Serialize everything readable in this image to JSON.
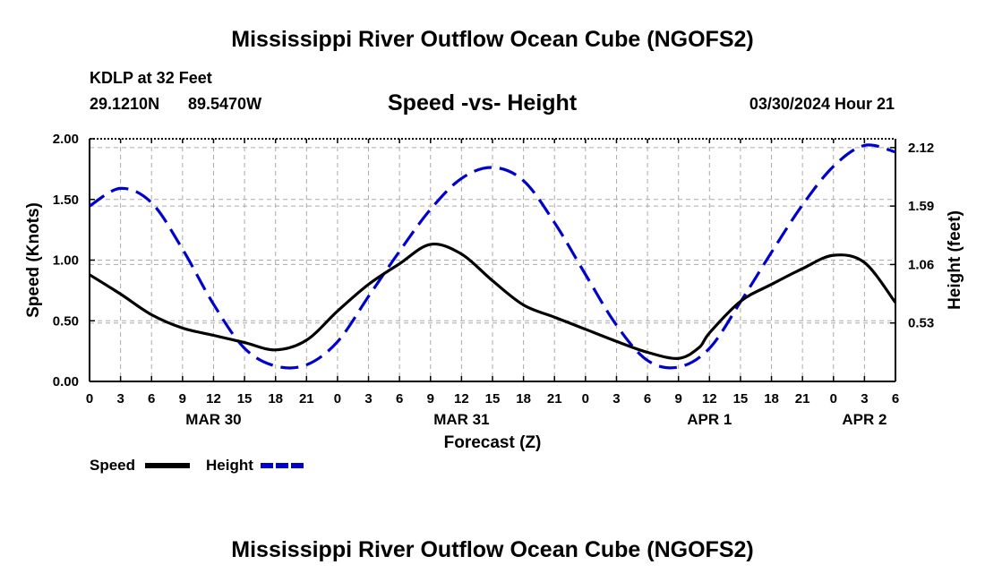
{
  "page": {
    "title": "Mississippi River Outflow Ocean Cube (NGOFS2)",
    "bottom_title": "Mississippi River Outflow Ocean Cube (NGOFS2)",
    "station": "KDLP at 32 Feet",
    "lat": "29.1210N",
    "lon": "89.5470W",
    "subtitle": "Speed -vs- Height",
    "datetime": "03/30/2024 Hour 21"
  },
  "chart_data": {
    "type": "line",
    "title": "Speed -vs- Height",
    "xlabel": "Forecast (Z)",
    "ylabel": "Speed (Knots)",
    "y2label": "Height (feet)",
    "xlim": [
      0,
      78
    ],
    "ylim": [
      0,
      2.0
    ],
    "y2lim": [
      0,
      2.2
    ],
    "grid": true,
    "x_ticks": [
      0,
      3,
      6,
      9,
      12,
      15,
      18,
      21,
      24,
      27,
      30,
      33,
      36,
      39,
      42,
      45,
      48,
      51,
      54,
      57,
      60,
      63,
      66,
      69,
      72,
      75,
      78
    ],
    "x_tick_labels": [
      "0",
      "3",
      "6",
      "9",
      "12",
      "15",
      "18",
      "21",
      "0",
      "3",
      "6",
      "9",
      "12",
      "15",
      "18",
      "21",
      "0",
      "3",
      "6",
      "9",
      "12",
      "15",
      "18",
      "21",
      "0",
      "3",
      "6"
    ],
    "date_labels": [
      {
        "label": "MAR 30",
        "x": 12
      },
      {
        "label": "MAR 31",
        "x": 36
      },
      {
        "label": "APR 1",
        "x": 60
      },
      {
        "label": "APR 2",
        "x": 75
      }
    ],
    "y_ticks": [
      0,
      0.5,
      1.0,
      1.5,
      2.0
    ],
    "y_tick_labels": [
      "0.00",
      "0.50",
      "1.00",
      "1.50",
      "2.00"
    ],
    "y2_ticks": [
      0.53,
      1.06,
      1.59,
      2.12
    ],
    "y2_tick_labels": [
      "0.53",
      "1.06",
      "1.59",
      "2.12"
    ],
    "legend": [
      {
        "name": "Speed",
        "color": "#000000",
        "style": "solid"
      },
      {
        "name": "Height",
        "color": "#0000cc",
        "style": "dashed"
      }
    ],
    "series": [
      {
        "name": "Speed",
        "axis": "left",
        "color": "#000000",
        "style": "solid",
        "x": [
          0,
          3,
          6,
          9,
          12,
          15,
          18,
          21,
          24,
          27,
          30,
          33,
          36,
          39,
          42,
          45,
          48,
          51,
          54,
          57,
          59,
          60,
          63,
          66,
          69,
          72,
          75,
          78
        ],
        "values": [
          0.88,
          0.72,
          0.55,
          0.44,
          0.38,
          0.32,
          0.26,
          0.34,
          0.58,
          0.8,
          0.97,
          1.13,
          1.05,
          0.83,
          0.63,
          0.53,
          0.43,
          0.33,
          0.24,
          0.19,
          0.28,
          0.4,
          0.66,
          0.8,
          0.93,
          1.04,
          0.98,
          0.65
        ]
      },
      {
        "name": "Height",
        "axis": "right",
        "color": "#0000cc",
        "style": "dashed",
        "x": [
          0,
          3,
          6,
          9,
          12,
          15,
          18,
          21,
          24,
          27,
          30,
          33,
          36,
          39,
          42,
          45,
          48,
          51,
          54,
          57,
          60,
          63,
          66,
          69,
          72,
          75,
          78
        ],
        "values": [
          1.59,
          1.75,
          1.62,
          1.2,
          0.7,
          0.3,
          0.14,
          0.15,
          0.36,
          0.77,
          1.18,
          1.56,
          1.84,
          1.94,
          1.82,
          1.44,
          0.97,
          0.51,
          0.19,
          0.13,
          0.3,
          0.72,
          1.17,
          1.6,
          1.95,
          2.14,
          2.08
        ]
      }
    ]
  }
}
